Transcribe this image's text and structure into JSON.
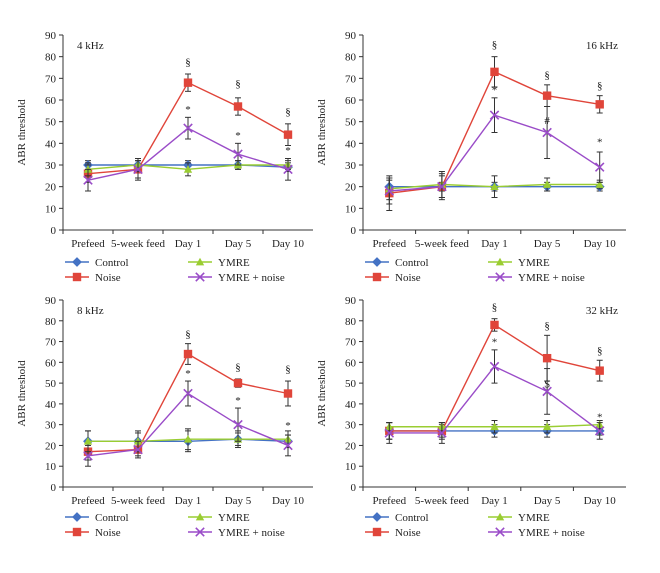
{
  "figure": {
    "series_names": [
      "Control",
      "Noise",
      "YMRE",
      "YMRE + noise"
    ],
    "series_colors": [
      "#4472C4",
      "#E0453A",
      "#9ACD32",
      "#9A4CC8"
    ],
    "series_markers": [
      "diamond",
      "square",
      "triangle",
      "cross"
    ]
  },
  "chart_data": [
    {
      "type": "line",
      "panel_label": "4 kHz",
      "ylabel": "ABR threshold",
      "ylim": [
        0,
        90
      ],
      "yticks": [
        0,
        10,
        20,
        30,
        40,
        50,
        60,
        70,
        80,
        90
      ],
      "categories": [
        "Prefeed",
        "5-week feed",
        "Day 1",
        "Day 5",
        "Day 10"
      ],
      "legend_position": "below",
      "series": [
        {
          "name": "Control",
          "values": [
            30,
            30,
            30,
            30,
            29
          ],
          "errors": [
            2,
            2,
            2,
            2,
            2
          ]
        },
        {
          "name": "Noise",
          "values": [
            26,
            28,
            68,
            57,
            44
          ],
          "errors": [
            4,
            5,
            4,
            4,
            5
          ]
        },
        {
          "name": "YMRE",
          "values": [
            28,
            30,
            28,
            30,
            30
          ],
          "errors": [
            3,
            3,
            3,
            2,
            2
          ]
        },
        {
          "name": "YMRE + noise",
          "values": [
            23,
            28,
            47,
            35,
            28
          ],
          "errors": [
            5,
            4,
            5,
            5,
            5
          ]
        }
      ],
      "annotations": [
        {
          "category": "Day 1",
          "text": "§",
          "value": 76
        },
        {
          "category": "Day 5",
          "text": "§",
          "value": 66
        },
        {
          "category": "Day 10",
          "text": "§",
          "value": 53
        },
        {
          "category": "Day 1",
          "text": "*",
          "value": 54
        },
        {
          "category": "Day 5",
          "text": "*",
          "value": 42
        },
        {
          "category": "Day 10",
          "text": "*",
          "value": 35
        }
      ]
    },
    {
      "type": "line",
      "panel_label": "16 kHz",
      "ylabel": "ABR threshold",
      "ylim": [
        0,
        90
      ],
      "yticks": [
        0,
        10,
        20,
        30,
        40,
        50,
        60,
        70,
        80,
        90
      ],
      "categories": [
        "Prefeed",
        "5-week feed",
        "Day 1",
        "Day 5",
        "Day 10"
      ],
      "legend_position": "below",
      "series": [
        {
          "name": "Control",
          "values": [
            20,
            20,
            20,
            20,
            20
          ],
          "errors": [
            3,
            2,
            2,
            2,
            2
          ]
        },
        {
          "name": "Noise",
          "values": [
            17,
            20,
            73,
            62,
            58
          ],
          "errors": [
            8,
            5,
            7,
            5,
            4
          ]
        },
        {
          "name": "YMRE",
          "values": [
            19,
            21,
            20,
            21,
            21
          ],
          "errors": [
            5,
            6,
            5,
            3,
            2
          ]
        },
        {
          "name": "YMRE + noise",
          "values": [
            18,
            20,
            53,
            45,
            29
          ],
          "errors": [
            6,
            6,
            8,
            12,
            7
          ]
        }
      ],
      "annotations": [
        {
          "category": "Day 1",
          "text": "§",
          "value": 84
        },
        {
          "category": "Day 5",
          "text": "§",
          "value": 70
        },
        {
          "category": "Day 10",
          "text": "§",
          "value": 65
        },
        {
          "category": "Day 1",
          "text": "*",
          "value": 63
        },
        {
          "category": "Day 5",
          "text": "#",
          "value": 49
        },
        {
          "category": "Day 10",
          "text": "*",
          "value": 39
        }
      ]
    },
    {
      "type": "line",
      "panel_label": "8 kHz",
      "ylabel": "ABR threshold",
      "ylim": [
        0,
        90
      ],
      "yticks": [
        0,
        10,
        20,
        30,
        40,
        50,
        60,
        70,
        80,
        90
      ],
      "categories": [
        "Prefeed",
        "5-week feed",
        "Day 1",
        "Day 5",
        "Day 10"
      ],
      "legend_position": "below",
      "series": [
        {
          "name": "Control",
          "values": [
            22,
            22,
            22,
            23,
            22
          ],
          "errors": [
            5,
            4,
            5,
            3,
            3
          ]
        },
        {
          "name": "Noise",
          "values": [
            17,
            18,
            64,
            50,
            45
          ],
          "errors": [
            4,
            3,
            5,
            2,
            6
          ]
        },
        {
          "name": "YMRE",
          "values": [
            22,
            22,
            23,
            23,
            23
          ],
          "errors": [
            5,
            5,
            5,
            4,
            4
          ]
        },
        {
          "name": "YMRE + noise",
          "values": [
            15,
            18,
            45,
            30,
            20
          ],
          "errors": [
            5,
            4,
            6,
            8,
            5
          ]
        }
      ],
      "annotations": [
        {
          "category": "Day 1",
          "text": "§",
          "value": 72
        },
        {
          "category": "Day 5",
          "text": "§",
          "value": 56
        },
        {
          "category": "Day 10",
          "text": "§",
          "value": 55
        },
        {
          "category": "Day 1",
          "text": "*",
          "value": 53
        },
        {
          "category": "Day 5",
          "text": "*",
          "value": 40
        },
        {
          "category": "Day 10",
          "text": "*",
          "value": 28
        }
      ]
    },
    {
      "type": "line",
      "panel_label": "32 kHz",
      "ylabel": "ABR threshold",
      "ylim": [
        0,
        90
      ],
      "yticks": [
        0,
        10,
        20,
        30,
        40,
        50,
        60,
        70,
        80,
        90
      ],
      "categories": [
        "Prefeed",
        "5-week feed",
        "Day 1",
        "Day 5",
        "Day 10"
      ],
      "legend_position": "below",
      "series": [
        {
          "name": "Control",
          "values": [
            27,
            27,
            27,
            27,
            27
          ],
          "errors": [
            4,
            3,
            3,
            3,
            2
          ]
        },
        {
          "name": "Noise",
          "values": [
            27,
            27,
            78,
            62,
            56
          ],
          "errors": [
            4,
            4,
            3,
            11,
            5
          ]
        },
        {
          "name": "YMRE",
          "values": [
            29,
            29,
            29,
            29,
            30
          ],
          "errors": [
            2,
            2,
            3,
            3,
            2
          ]
        },
        {
          "name": "YMRE + noise",
          "values": [
            26,
            26,
            58,
            46,
            27
          ],
          "errors": [
            5,
            5,
            8,
            11,
            4
          ]
        }
      ],
      "annotations": [
        {
          "category": "Day 1",
          "text": "§",
          "value": 85
        },
        {
          "category": "Day 5",
          "text": "§",
          "value": 76
        },
        {
          "category": "Day 10",
          "text": "§",
          "value": 64
        },
        {
          "category": "Day 1",
          "text": "*",
          "value": 68
        },
        {
          "category": "Day 5",
          "text": "$",
          "value": 48
        },
        {
          "category": "Day 10",
          "text": "*",
          "value": 32
        }
      ]
    }
  ]
}
